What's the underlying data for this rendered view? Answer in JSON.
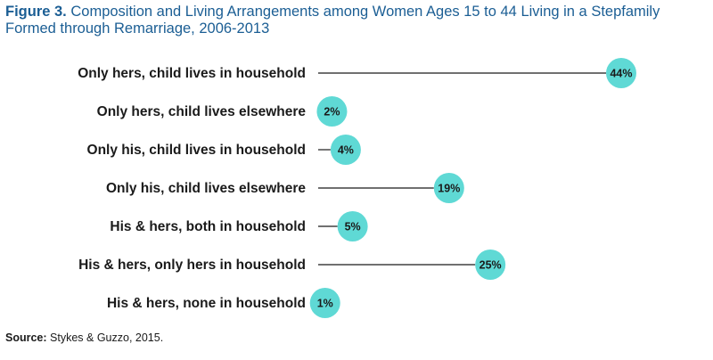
{
  "figure_label": "Figure 3.",
  "title_text": "Composition and Living Arrangements among Women Ages 15 to 44 Living in a Stepfamily Formed through Remarriage, 2006-2013",
  "source_label": "Source:",
  "source_text": "Stykes & Guzzo, 2015.",
  "colors": {
    "title": "#1b5e94",
    "bubble": "#5fd9d5",
    "line": "#1a1a1a",
    "text": "#1a1a1a"
  },
  "chart_data": {
    "type": "bar",
    "categories": [
      "Only hers, child lives in household",
      "Only hers, child lives elsewhere",
      "Only his, child lives in household",
      "Only his, child lives elsewhere",
      "His & hers, both in household",
      "His & hers, only hers in household",
      "His & hers, none in household"
    ],
    "values": [
      44,
      2,
      4,
      19,
      5,
      25,
      1
    ],
    "value_labels": [
      "44%",
      "2%",
      "4%",
      "19%",
      "5%",
      "25%",
      "1%"
    ],
    "unit": "%",
    "xlim": [
      0,
      44
    ],
    "grid": false,
    "legend": "none"
  }
}
